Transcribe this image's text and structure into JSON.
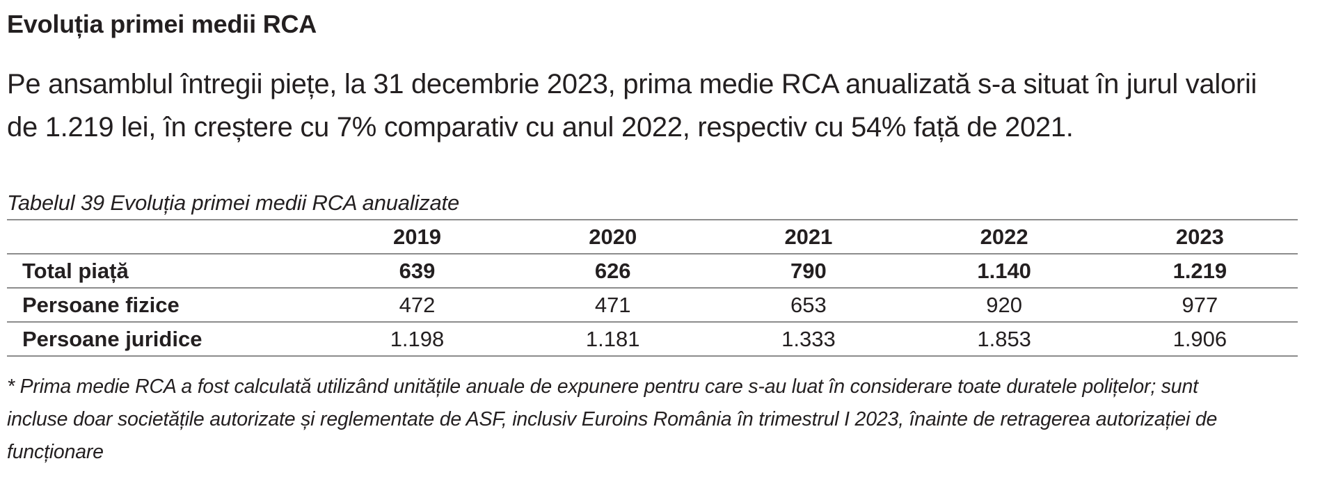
{
  "heading": "Evoluția primei medii RCA",
  "intro": {
    "line1": "Pe ansamblul întregii piețe, la 31 decembrie 2023, prima medie RCA anualizată s-a situat în jurul valorii",
    "line2": "de 1.219 lei, în creștere cu 7% comparativ cu anul 2022, respectiv cu 54% față de 2021."
  },
  "table": {
    "caption": "Tabelul 39 Evoluția primei medii RCA anualizate",
    "columns": [
      "",
      "2019",
      "2020",
      "2021",
      "2022",
      "2023"
    ],
    "rows": [
      {
        "label": "Total piață",
        "values": [
          "639",
          "626",
          "790",
          "1.140",
          "1.219"
        ]
      },
      {
        "label": "Persoane fizice",
        "values": [
          "472",
          "471",
          "653",
          "920",
          "977"
        ]
      },
      {
        "label": "Persoane juridice",
        "values": [
          "1.198",
          "1.181",
          "1.333",
          "1.853",
          "1.906"
        ]
      }
    ]
  },
  "footnote": {
    "line1": "* Prima medie RCA a fost calculată utilizând unitățile anuale de expunere pentru care s-au luat în considerare toate duratele polițelor; sunt",
    "line2": "incluse doar societățile autorizate și reglementate de ASF,  inclusiv Euroins România în trimestrul I 2023, înainte de retragerea autorizației de",
    "line3": "funcționare"
  }
}
